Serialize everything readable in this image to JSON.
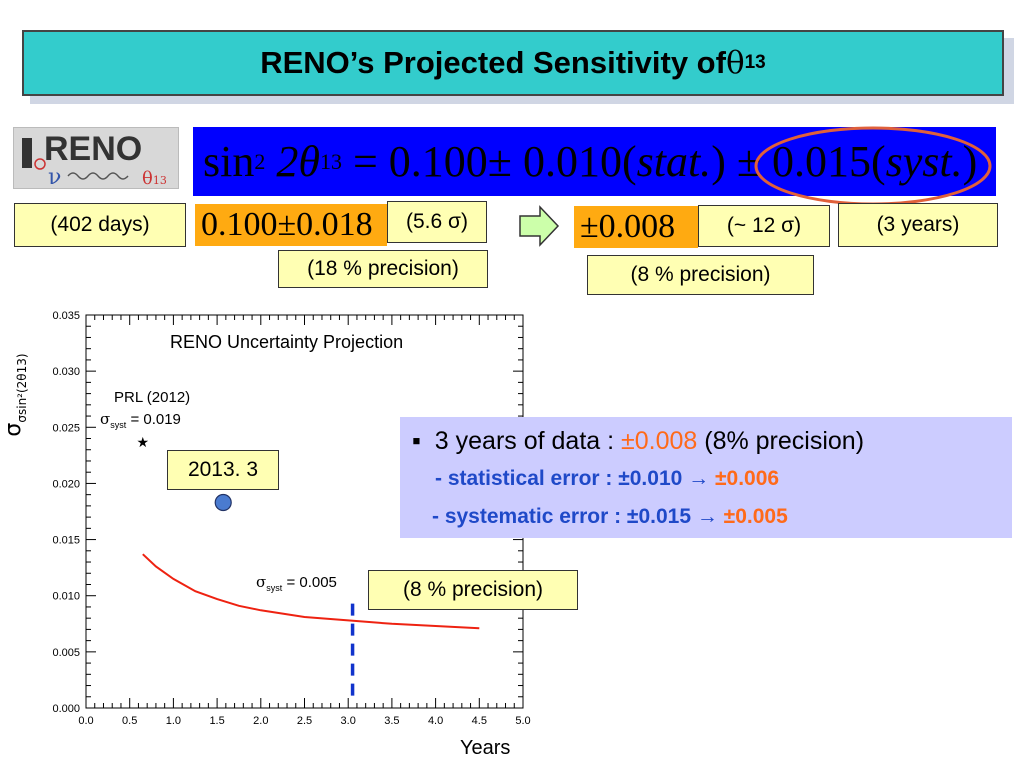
{
  "slide": {
    "title_prefix": "RENO’s Projected Sensitivity of ",
    "title_symbol": "θ",
    "title_sub": "13"
  },
  "logo": {
    "text": "RENO",
    "nu": "ν",
    "theta": "θ",
    "theta_sub": "13"
  },
  "formula": {
    "sin": "sin",
    "sup": "2",
    "two_theta": "2θ",
    "sub": "13",
    "value": "= 0.100± 0.010(",
    "stat": "stat.",
    "mid": ") ± 0.015(",
    "syst": "syst.",
    "end": ")"
  },
  "labels": {
    "days": "(402 days)",
    "current_value": "0.100±0.018",
    "current_sigma": "(5.6 σ)",
    "current_precision": "(18 % precision)",
    "future_value": "±0.008",
    "future_sigma": "(~ 12 σ)",
    "years": "(3 years)",
    "future_precision": "(8 % precision)",
    "date_tag": "2013. 3",
    "chart_precision": "(8 % precision)"
  },
  "info": {
    "bullet": "▪",
    "line1_a": "3 years of data : ",
    "line1_b": "±0.008",
    "line1_c": " (8% precision)",
    "line2_a": "- statistical error :  ±0.010 →  ",
    "line2_b": "±0.006",
    "line3_a": "- systematic error :  ±0.015  → ",
    "line3_b": "±0.005"
  },
  "chart_data": {
    "type": "line",
    "title": "RENO Uncertainty Projection",
    "xlabel": "Years",
    "ylabel": "σsin²(2θ13)",
    "xlim": [
      0,
      5
    ],
    "ylim": [
      0,
      0.035
    ],
    "xticks": [
      "0.0",
      "0.5",
      "1.0",
      "1.5",
      "2.0",
      "2.5",
      "3.0",
      "3.5",
      "4.0",
      "4.5",
      "5.0"
    ],
    "yticks": [
      "0.000",
      "0.005",
      "0.010",
      "0.015",
      "0.020",
      "0.025",
      "0.030",
      "0.035"
    ],
    "series": [
      {
        "name": "σsyst = 0.005",
        "x": [
          0.65,
          0.8,
          1.0,
          1.25,
          1.5,
          1.75,
          2.0,
          2.5,
          3.0,
          3.5,
          4.0,
          4.5
        ],
        "y": [
          0.0137,
          0.0126,
          0.0115,
          0.0104,
          0.0097,
          0.0091,
          0.0087,
          0.0081,
          0.0078,
          0.0075,
          0.0073,
          0.0071
        ]
      }
    ],
    "points": [
      {
        "label": "PRL (2012)",
        "x": 0.65,
        "y": 0.0237
      },
      {
        "label": "2013. 3",
        "x": 1.57,
        "y": 0.0183
      }
    ],
    "annotations": {
      "prl": "PRL (2012)",
      "sigma_prl": "= 0.019",
      "sigma_5": "= 0.005",
      "sigma": "σ",
      "syst": "syst"
    },
    "marker_year": 3.05,
    "colors": {
      "curve": "#ee2211",
      "marker_line": "#1133cc",
      "point": "#4a7bd0"
    }
  }
}
